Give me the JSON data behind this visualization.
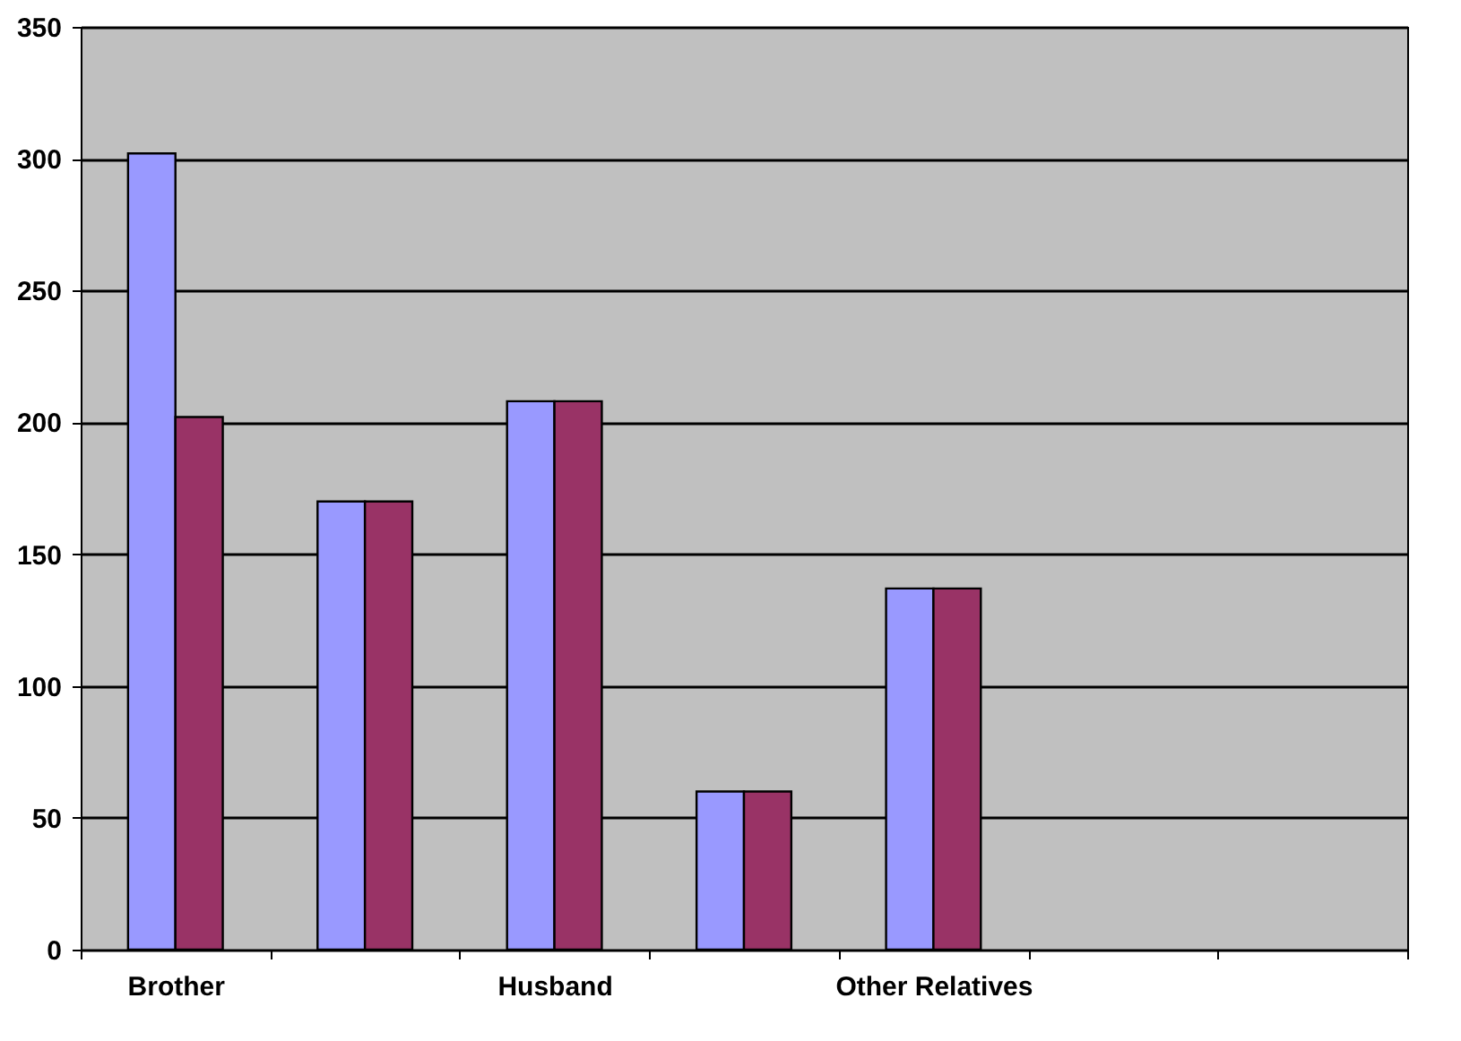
{
  "chart_data": {
    "type": "bar",
    "categories": [
      "Brother",
      null,
      "Husband",
      null,
      "Other Relatives",
      null,
      null
    ],
    "series": [
      {
        "color": "#9999ff",
        "values": [
          302,
          170,
          208,
          60,
          137,
          null,
          null
        ]
      },
      {
        "color": "#993366",
        "values": [
          202,
          170,
          208,
          60,
          137,
          null,
          null
        ]
      }
    ],
    "ylim": [
      0,
      350
    ],
    "yticks": [
      0,
      50,
      100,
      150,
      200,
      250,
      300,
      350
    ],
    "grid": "y",
    "legend": false
  }
}
